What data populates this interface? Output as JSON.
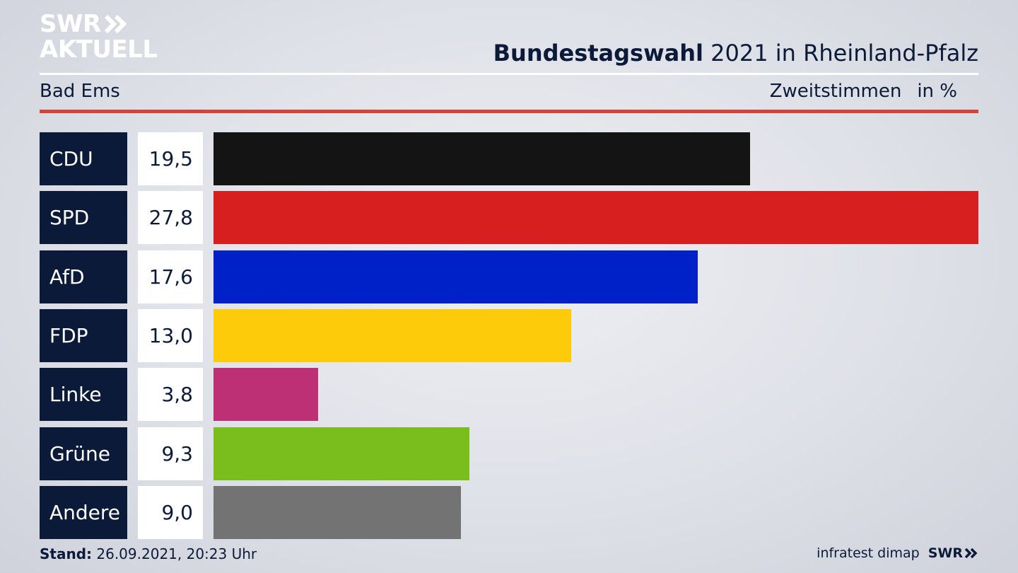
{
  "brand": {
    "logo_line1": "SWR",
    "logo_line2": "AKTUELL",
    "footer_logo": "SWR"
  },
  "header": {
    "title_bold": "Bundestagswahl",
    "title_rest": "2021 in Rheinland-Pfalz",
    "subtitle": "Bad Ems",
    "measure": "Zweitstimmen",
    "unit": "in %"
  },
  "footer": {
    "stand_label": "Stand:",
    "stand_value": "26.09.2021, 20:23 Uhr",
    "source": "infratest dimap"
  },
  "colors": {
    "accent_red": "#d4433a",
    "navy": "#0c1a3a"
  },
  "chart_data": {
    "type": "bar",
    "orientation": "horizontal",
    "categories": [
      "CDU",
      "SPD",
      "AfD",
      "FDP",
      "Linke",
      "Grüne",
      "Andere"
    ],
    "values": [
      19.5,
      27.8,
      17.6,
      13.0,
      3.8,
      9.3,
      9.0
    ],
    "value_labels": [
      "19,5",
      "27,8",
      "17,6",
      "13,0",
      "3,8",
      "9,3",
      "9,0"
    ],
    "colors": [
      "#141414",
      "#d81f20",
      "#0021c8",
      "#fecb0a",
      "#be3075",
      "#79be1c",
      "#737373"
    ],
    "xlim": [
      0,
      27.8
    ],
    "grid": false,
    "legend": "none"
  }
}
